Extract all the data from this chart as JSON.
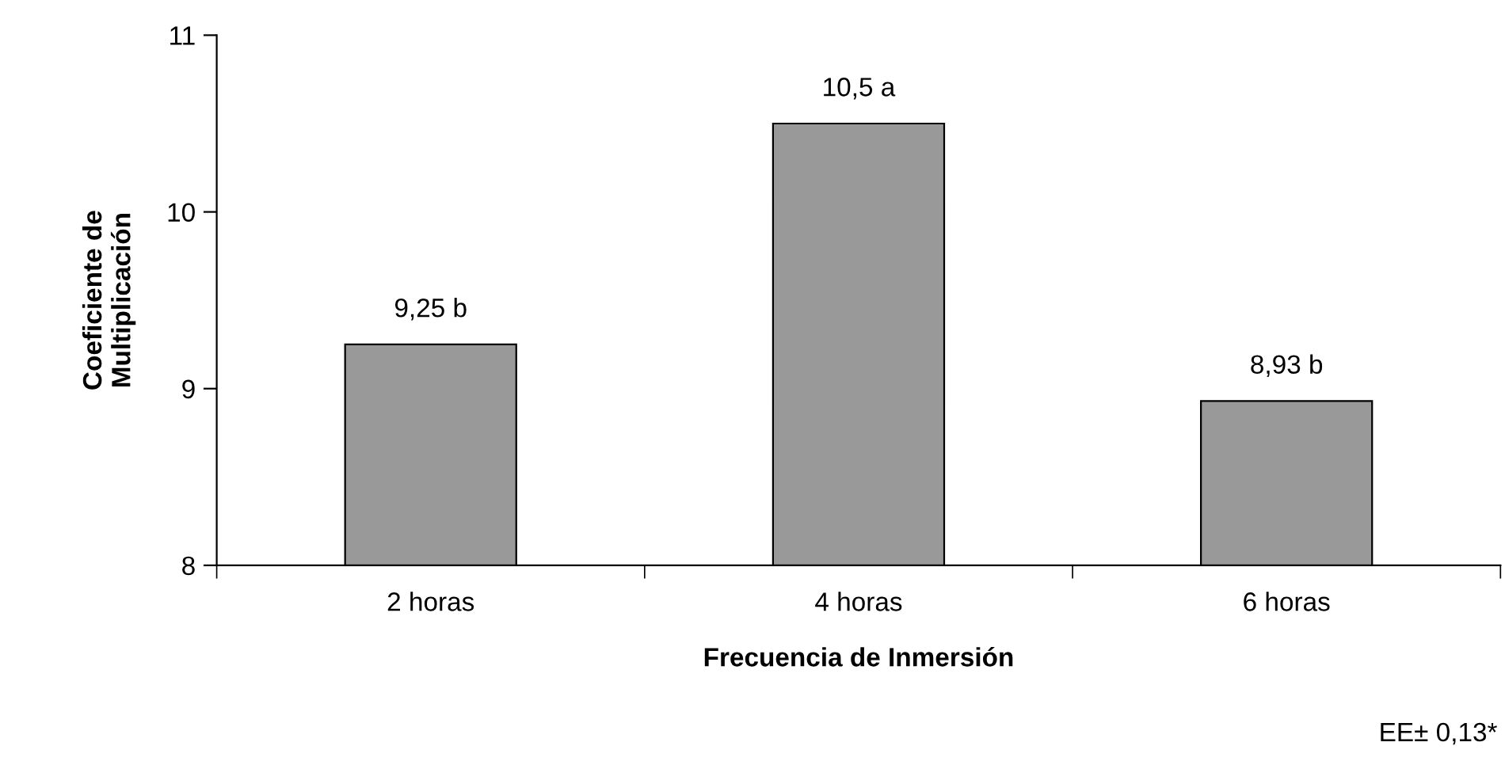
{
  "chart_data": {
    "type": "bar",
    "xlabel": "Frecuencia de Inmersión",
    "ylabel": "Coeficiente de\nMultiplicación",
    "categories": [
      "2 horas",
      "4 horas",
      "6 horas"
    ],
    "values": [
      9.25,
      10.5,
      8.93
    ],
    "value_labels": [
      "9,25 b",
      "10,5 a",
      "8,93 b"
    ],
    "color": "#999999",
    "ylim": [
      8,
      11
    ],
    "yticks": [
      8,
      9,
      10,
      11
    ],
    "grid": false,
    "legend": false,
    "annotations": [
      "EE± 0,13*"
    ]
  }
}
